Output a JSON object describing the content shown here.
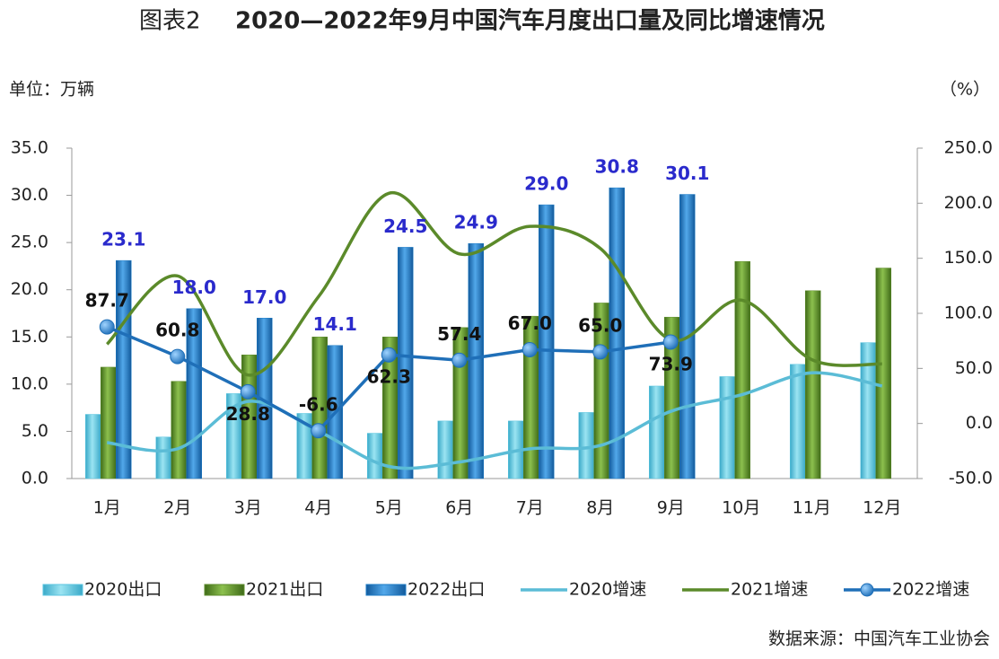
{
  "chart_data": {
    "type": "bar",
    "figure_label": "图表2",
    "title": "2020—2022年9月中国汽车月度出口量及同比增速情况",
    "y_label": "单位：万辆",
    "y2_label": "（%）",
    "source": "数据来源：中国汽车工业协会",
    "categories": [
      "1月",
      "2月",
      "3月",
      "4月",
      "5月",
      "6月",
      "7月",
      "8月",
      "9月",
      "10月",
      "11月",
      "12月"
    ],
    "ylim": [
      0,
      35
    ],
    "yticks": [
      {
        "value": 0,
        "label": "0.0"
      },
      {
        "value": 5,
        "label": "5.0"
      },
      {
        "value": 10,
        "label": "10.0"
      },
      {
        "value": 15,
        "label": "15.0"
      },
      {
        "value": 20,
        "label": "20.0"
      },
      {
        "value": 25,
        "label": "25.0"
      },
      {
        "value": 30,
        "label": "30.0"
      },
      {
        "value": 35,
        "label": "35.0"
      }
    ],
    "y2lim": [
      -50,
      250
    ],
    "y2ticks": [
      {
        "value": -50,
        "label": "-50.0"
      },
      {
        "value": 0,
        "label": "0.0"
      },
      {
        "value": 50,
        "label": "50.0"
      },
      {
        "value": 100,
        "label": "100.0"
      },
      {
        "value": 150,
        "label": "150.0"
      },
      {
        "value": 200,
        "label": "200.0"
      },
      {
        "value": 250,
        "label": "250.0"
      }
    ],
    "legend": "bottom",
    "series": [
      {
        "name": "2020出口",
        "type": "bar",
        "color": "#5cc6e0",
        "values": [
          6.8,
          4.4,
          9.0,
          6.9,
          4.8,
          6.1,
          6.1,
          7.0,
          9.8,
          10.8,
          12.1,
          14.4
        ]
      },
      {
        "name": "2021出口",
        "type": "bar",
        "color": "#5e8c2c",
        "values": [
          11.8,
          10.3,
          13.1,
          15.0,
          15.0,
          16.0,
          17.2,
          18.6,
          17.1,
          23.0,
          19.9,
          22.3
        ]
      },
      {
        "name": "2022出口",
        "type": "bar",
        "color": "#1f7cc6",
        "values": [
          23.1,
          18.0,
          17.0,
          14.1,
          24.5,
          24.9,
          29.0,
          30.8,
          30.1,
          null,
          null,
          null
        ],
        "value_labels": [
          "23.1",
          "18.0",
          "17.0",
          "14.1",
          "24.5",
          "24.9",
          "29.0",
          "30.8",
          "30.1",
          null,
          null,
          null
        ]
      },
      {
        "name": "2020增速",
        "type": "line",
        "axis": "y2",
        "color": "#5bbcd6",
        "values": [
          -17.4,
          -23,
          20,
          -7,
          -39,
          -35,
          -23,
          -20,
          11,
          26,
          46,
          34
        ]
      },
      {
        "name": "2021增速",
        "type": "line",
        "axis": "y2",
        "color": "#5b8a2a",
        "values": [
          72,
          134,
          44,
          115,
          209,
          154,
          179,
          159,
          76,
          112,
          58,
          54
        ]
      },
      {
        "name": "2022增速",
        "type": "line",
        "axis": "y2",
        "color": "#1f6fb8",
        "marker": true,
        "values": [
          87.7,
          60.8,
          28.8,
          -6.6,
          62.3,
          57.4,
          67.0,
          65.0,
          73.9,
          null,
          null,
          null
        ],
        "value_labels": [
          "87.7",
          "60.8",
          "28.8",
          "-6.6",
          "62.3",
          "57.4",
          "67.0",
          "65.0",
          "73.9",
          null,
          null,
          null
        ]
      }
    ]
  }
}
